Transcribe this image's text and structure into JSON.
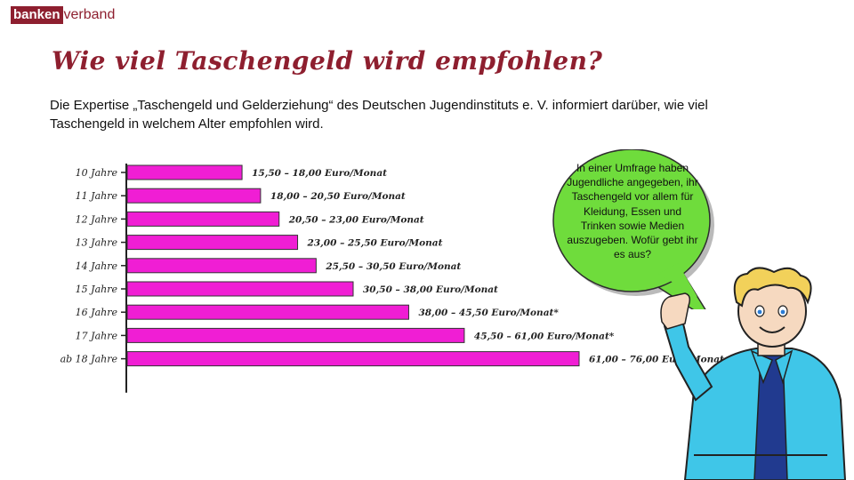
{
  "logo": {
    "part1": "banken",
    "part2": "verband"
  },
  "title": "Wie viel Taschengeld wird empfohlen?",
  "intro": "Die Expertise „Taschengeld und Gelderziehung“ des Deutschen Jugendinstituts e. V. informiert darüber, wie viel Taschengeld in welchem Alter empfohlen wird.",
  "bubble": {
    "text": "In einer Umfrage haben Jugendliche angegeben, ihr Taschengeld vor allem für Kleidung, Essen und Trinken sowie Medien auszugeben. Wofür gebt ihr es aus?"
  },
  "colors": {
    "bar": "#f01ed4",
    "brand": "#8e1f2f",
    "bubble": "#6fdc3c",
    "shirt": "#3fc6e8",
    "hair": "#f2d15a"
  },
  "chart_data": {
    "type": "bar",
    "orientation": "horizontal",
    "categories": [
      "10 Jahre",
      "11 Jahre",
      "12 Jahre",
      "13 Jahre",
      "14 Jahre",
      "15 Jahre",
      "16 Jahre",
      "17 Jahre",
      "ab 18 Jahre"
    ],
    "values": [
      15.5,
      18.0,
      20.5,
      23.0,
      25.5,
      30.5,
      38.0,
      45.5,
      61.0
    ],
    "labels": [
      "15,50 – 18,00 Euro/Monat",
      "18,00 – 20,50 Euro/Monat",
      "20,50 – 23,00 Euro/Monat",
      "23,00 – 25,50 Euro/Monat",
      "25,50 – 30,50 Euro/Monat",
      "30,50 – 38,00 Euro/Monat",
      "38,00 – 45,50 Euro/Monat*",
      "45,50 – 61,00 Euro/Monat*",
      "61,00 – 76,00 Euro/Monat"
    ],
    "xlim": [
      0,
      61
    ],
    "grid": false
  }
}
